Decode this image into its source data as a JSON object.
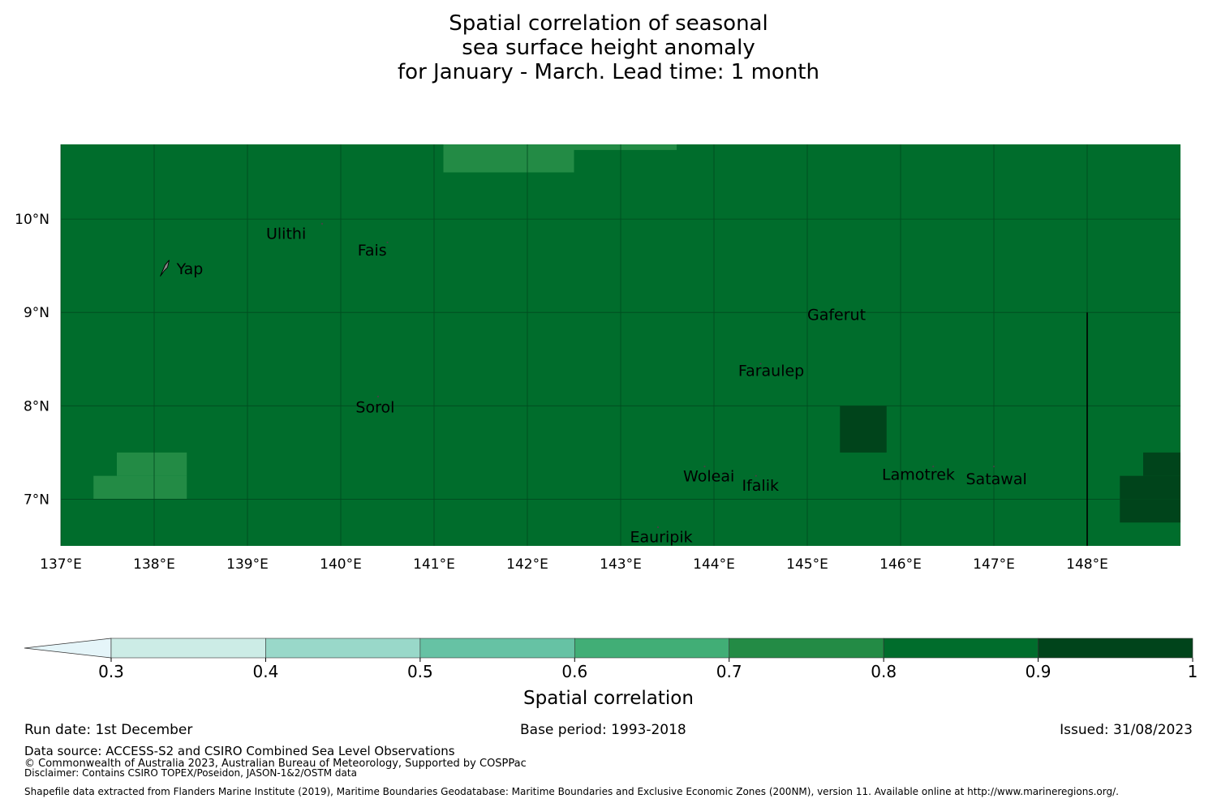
{
  "title": {
    "line1": "Spatial correlation of seasonal",
    "line2": "sea surface height anomaly",
    "line3": "for January - March. Lead time: 1 month"
  },
  "colors": {
    "base": "#006d2c",
    "grid": "#00491e",
    "classes": [
      "#e5f5f9",
      "#ccece6",
      "#99d8c9",
      "#66c2a4",
      "#41ae76",
      "#238b45",
      "#006d2c",
      "#00441b"
    ]
  },
  "map": {
    "lon_range": [
      137.0,
      149.0
    ],
    "lat_range": [
      6.5,
      10.8
    ],
    "lon_ticks": [
      {
        "value": 137,
        "label": "137°E"
      },
      {
        "value": 138,
        "label": "138°E"
      },
      {
        "value": 139,
        "label": "139°E"
      },
      {
        "value": 140,
        "label": "140°E"
      },
      {
        "value": 141,
        "label": "141°E"
      },
      {
        "value": 142,
        "label": "142°E"
      },
      {
        "value": 143,
        "label": "143°E"
      },
      {
        "value": 144,
        "label": "144°E"
      },
      {
        "value": 145,
        "label": "145°E"
      },
      {
        "value": 146,
        "label": "146°E"
      },
      {
        "value": 147,
        "label": "147°E"
      },
      {
        "value": 148,
        "label": "148°E"
      }
    ],
    "lat_ticks": [
      {
        "value": 10,
        "label": "10°N"
      },
      {
        "value": 9,
        "label": "9°N"
      },
      {
        "value": 8,
        "label": "8°N"
      },
      {
        "value": 7,
        "label": "7°N"
      }
    ],
    "cells": [
      {
        "lon0": 141.1,
        "lon1": 142.5,
        "lat0": 10.5,
        "lat1": 10.8,
        "value": 0.75
      },
      {
        "lon0": 142.5,
        "lon1": 143.6,
        "lat0": 10.74,
        "lat1": 10.8,
        "value": 0.75
      },
      {
        "lon0": 137.6,
        "lon1": 138.35,
        "lat0": 7.25,
        "lat1": 7.5,
        "value": 0.75
      },
      {
        "lon0": 137.35,
        "lon1": 138.35,
        "lat0": 7.0,
        "lat1": 7.25,
        "value": 0.75
      },
      {
        "lon0": 145.35,
        "lon1": 145.85,
        "lat0": 7.5,
        "lat1": 8.0,
        "value": 0.95
      },
      {
        "lon0": 148.6,
        "lon1": 149.0,
        "lat0": 7.25,
        "lat1": 7.5,
        "value": 0.95
      },
      {
        "lon0": 148.35,
        "lon1": 149.0,
        "lat0": 6.75,
        "lat1": 7.25,
        "value": 0.95
      }
    ],
    "boundary": {
      "lon": 148.0,
      "lat0": 6.5,
      "lat1": 9.0
    },
    "places": [
      {
        "name": "Ulithi",
        "lon": 139.8,
        "lat": 9.95,
        "label_lon": 139.2,
        "label_lat": 9.85
      },
      {
        "name": "Fais",
        "lon": 140.5,
        "lat": 9.75,
        "label_lon": 140.18,
        "label_lat": 9.67
      },
      {
        "name": "Yap",
        "lon": 138.1,
        "lat": 9.5,
        "label_lon": 138.24,
        "label_lat": 9.47
      },
      {
        "name": "Gaferut",
        "lon": 145.35,
        "lat": 9.0,
        "label_lon": 145.0,
        "label_lat": 8.98
      },
      {
        "name": "Faraulep",
        "lon": 144.5,
        "lat": 8.45,
        "label_lon": 144.26,
        "label_lat": 8.38
      },
      {
        "name": "Sorol",
        "lon": 140.4,
        "lat": 8.1,
        "label_lon": 140.16,
        "label_lat": 7.99
      },
      {
        "name": "Woleai",
        "lon": 143.9,
        "lat": 7.35,
        "label_lon": 143.67,
        "label_lat": 7.25
      },
      {
        "name": "Ifalik",
        "lon": 144.45,
        "lat": 7.25,
        "label_lon": 144.3,
        "label_lat": 7.15
      },
      {
        "name": "Lamotrek",
        "lon": 146.35,
        "lat": 7.35,
        "label_lon": 145.8,
        "label_lat": 7.27
      },
      {
        "name": "Satawal",
        "lon": 147.0,
        "lat": 7.35,
        "label_lon": 146.7,
        "label_lat": 7.22
      },
      {
        "name": "Eauripik",
        "lon": 143.4,
        "lat": 6.7,
        "label_lon": 143.1,
        "label_lat": 6.6
      }
    ]
  },
  "colorbar": {
    "bounds": [
      0.3,
      0.4,
      0.5,
      0.6,
      0.7,
      0.8,
      0.9,
      1.0
    ],
    "labels": [
      "0.3",
      "0.4",
      "0.5",
      "0.6",
      "0.7",
      "0.8",
      "0.9",
      "1"
    ],
    "extend": "min",
    "title": "Spatial correlation"
  },
  "footer": {
    "run_date": "Run date: 1st December",
    "base_period": "Base period: 1993-2018",
    "issued": "Issued: 31/08/2023",
    "data_source": "Data source: ACCESS-S2 and CSIRO Combined Sea Level Observations",
    "copyright": "© Commonwealth of Australia 2023, Australian Bureau of Meteorology, Supported by COSPPac",
    "disclaimer": "Disclaimer: Contains CSIRO TOPEX/Poseidon, JASON-1&2/OSTM data",
    "shapefile": "Shapefile data extracted from Flanders Marine Institute (2019), Maritime Boundaries Geodatabase: Maritime Boundaries and Exclusive Economic Zones (200NM), version 11. Available online at http://www.marineregions.org/."
  }
}
